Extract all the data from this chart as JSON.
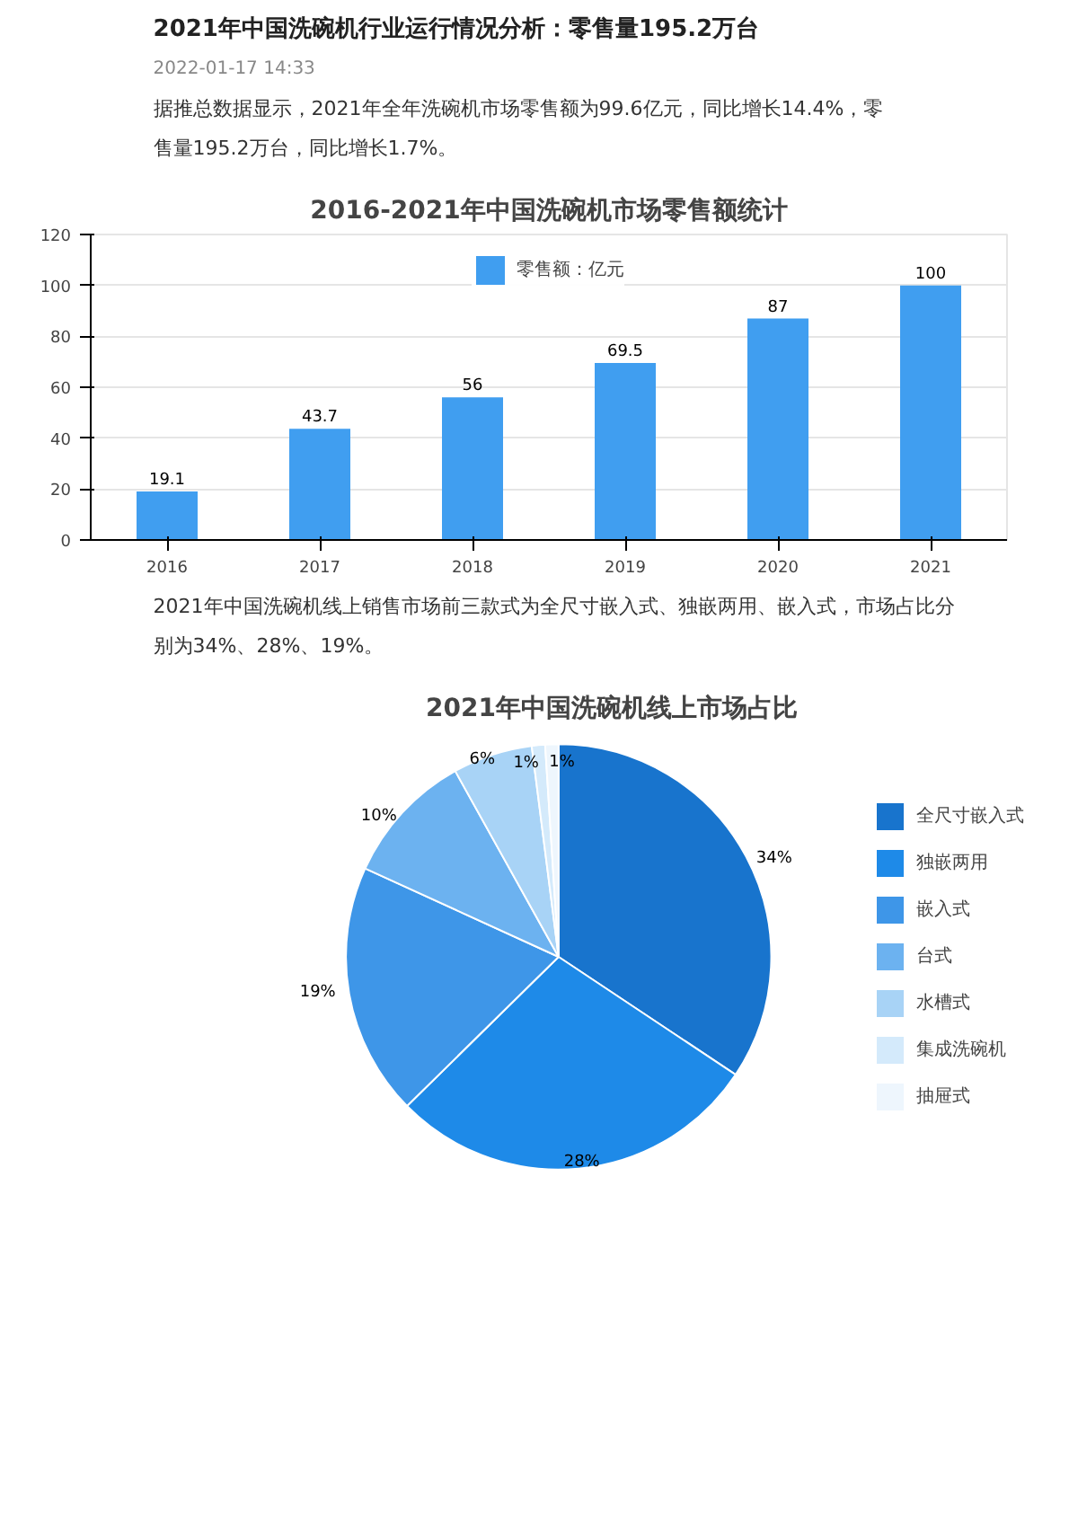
{
  "chart_data": [
    {
      "type": "other",
      "title": "2021年中国洗碗机行业运行情况分析：零售量195.2万台",
      "annotations": [
        "2022-01-17 14:33",
        "据推总数据显示，2021年全年洗碗机市场零售额为99.6亿元，同比增长14.4%，零售量195.2万台，同比增长1.7%。"
      ]
    },
    {
      "type": "bar",
      "title": "2016-2021年中国洗碗机市场零售额统计",
      "categories": [
        "2016",
        "2017",
        "2018",
        "2019",
        "2020",
        "2021"
      ],
      "series": [
        {
          "name": "零售额：亿元",
          "color": "#409ef0",
          "values": [
            19.1,
            43.7,
            56,
            69.5,
            87,
            100
          ]
        }
      ],
      "ylim": [
        0,
        120
      ],
      "yticks": [
        0,
        20,
        40,
        60,
        80,
        100,
        120
      ],
      "grid": "y",
      "legend": "top",
      "data_labels": true
    },
    {
      "type": "other",
      "annotations": [
        "2021年中国洗碗机线上销售市场前三款式为全尺寸嵌入式、独嵌两用、嵌入式，市场占比分别为34%、28%、19%。"
      ]
    },
    {
      "type": "pie",
      "title": "2021年中国洗碗机线上市场占比",
      "categories": [
        "全尺寸嵌入式",
        "独嵌两用",
        "嵌入式",
        "台式",
        "水槽式",
        "集成洗碗机",
        "抽屉式"
      ],
      "values": [
        34,
        28,
        19,
        10,
        6,
        1,
        1
      ],
      "value_labels": [
        "34%",
        "28%",
        "19%",
        "10%",
        "6%",
        "1%",
        "1%"
      ],
      "colors": [
        "#1874cd",
        "#1e8ae8",
        "#3e96e8",
        "#6cb2f0",
        "#a8d3f6",
        "#d4eafb",
        "#eef6fd"
      ],
      "legend": "right"
    }
  ]
}
